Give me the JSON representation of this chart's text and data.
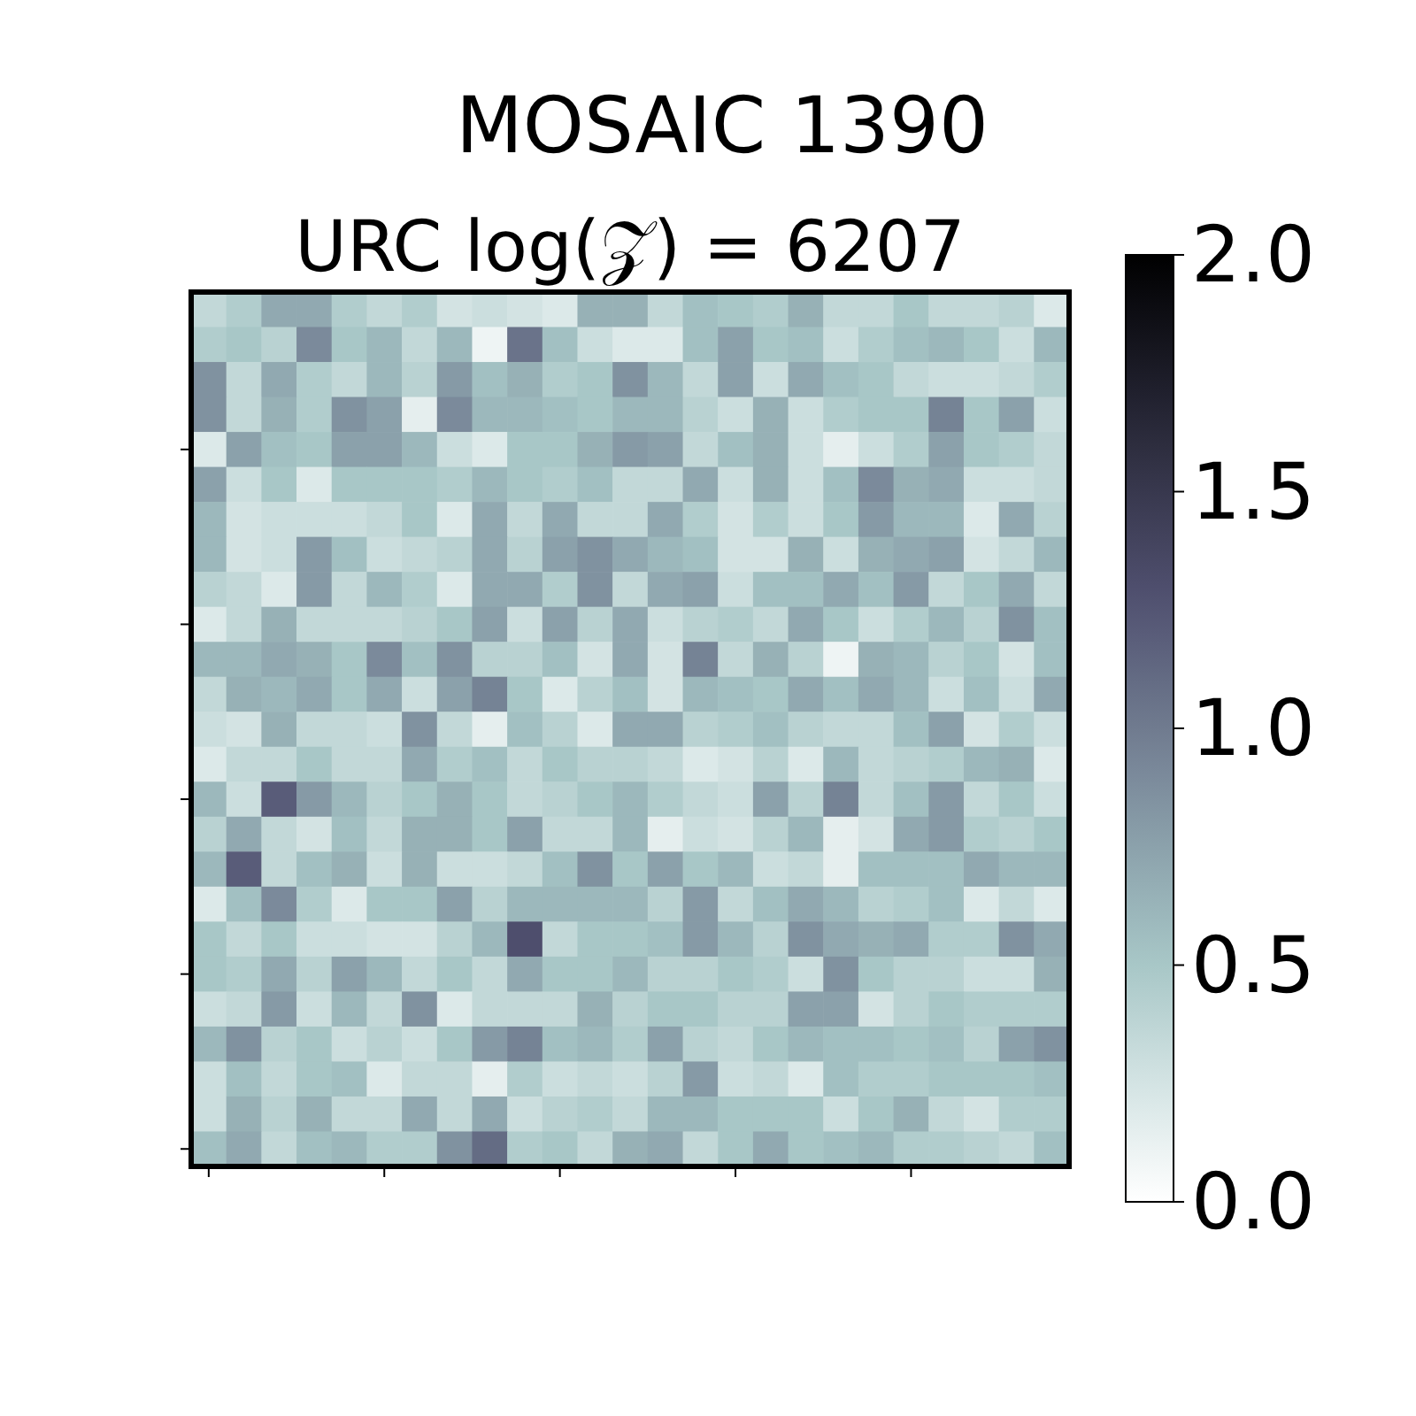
{
  "chart_data": {
    "type": "heatmap",
    "title": "MOSAIC 1390",
    "subtitle": "URC log(𝒵) = 6207",
    "categories": [
      null,
      null,
      null,
      null,
      null,
      null,
      null,
      null,
      null,
      null,
      null,
      null,
      null,
      null,
      null,
      null,
      null,
      null,
      null,
      null,
      null,
      null,
      null,
      null,
      null
    ],
    "y_categories": [
      null,
      null,
      null,
      null,
      null,
      null,
      null,
      null,
      null,
      null,
      null,
      null,
      null,
      null,
      null,
      null,
      null,
      null,
      null,
      null,
      null,
      null,
      null,
      null,
      null
    ],
    "clim": [
      0,
      2
    ],
    "cticks": [
      {
        "value": 0,
        "label": "0.0"
      },
      {
        "value": 0.5,
        "label": "0.5"
      },
      {
        "value": 1,
        "label": "1.0"
      },
      {
        "value": 1.5,
        "label": "1.5"
      },
      {
        "value": 2,
        "label": "2.0"
      }
    ],
    "cells": [
      [
        0.35,
        0.45,
        0.7,
        0.7,
        0.45,
        0.35,
        0.45,
        0.25,
        0.3,
        0.25,
        0.2,
        0.65,
        0.65,
        0.35,
        0.55,
        0.5,
        0.45,
        0.65,
        0.35,
        0.35,
        0.5,
        0.35,
        0.35,
        0.4,
        0.2
      ],
      [
        0.45,
        0.5,
        0.4,
        0.9,
        0.5,
        0.6,
        0.35,
        0.6,
        0.1,
        1.05,
        0.55,
        0.3,
        0.2,
        0.2,
        0.55,
        0.75,
        0.5,
        0.55,
        0.3,
        0.45,
        0.55,
        0.6,
        0.5,
        0.3,
        0.6
      ],
      [
        0.85,
        0.35,
        0.7,
        0.45,
        0.35,
        0.6,
        0.4,
        0.8,
        0.55,
        0.65,
        0.45,
        0.5,
        0.85,
        0.6,
        0.35,
        0.75,
        0.3,
        0.7,
        0.55,
        0.5,
        0.35,
        0.3,
        0.3,
        0.35,
        0.45
      ],
      [
        0.85,
        0.35,
        0.65,
        0.45,
        0.85,
        0.75,
        0.15,
        0.9,
        0.6,
        0.6,
        0.55,
        0.5,
        0.6,
        0.6,
        0.4,
        0.3,
        0.65,
        0.3,
        0.45,
        0.5,
        0.5,
        0.95,
        0.5,
        0.75,
        0.3
      ],
      [
        0.2,
        0.75,
        0.55,
        0.5,
        0.75,
        0.75,
        0.6,
        0.3,
        0.2,
        0.5,
        0.5,
        0.65,
        0.8,
        0.75,
        0.35,
        0.55,
        0.65,
        0.3,
        0.15,
        0.3,
        0.45,
        0.75,
        0.5,
        0.45,
        0.35
      ],
      [
        0.75,
        0.3,
        0.5,
        0.2,
        0.5,
        0.5,
        0.5,
        0.45,
        0.6,
        0.5,
        0.45,
        0.55,
        0.35,
        0.35,
        0.7,
        0.3,
        0.65,
        0.3,
        0.55,
        0.9,
        0.65,
        0.7,
        0.3,
        0.3,
        0.35
      ],
      [
        0.6,
        0.25,
        0.3,
        0.3,
        0.3,
        0.35,
        0.5,
        0.2,
        0.7,
        0.35,
        0.7,
        0.35,
        0.35,
        0.7,
        0.45,
        0.25,
        0.45,
        0.3,
        0.5,
        0.8,
        0.6,
        0.6,
        0.2,
        0.7,
        0.4
      ],
      [
        0.6,
        0.25,
        0.3,
        0.8,
        0.55,
        0.3,
        0.35,
        0.4,
        0.7,
        0.4,
        0.75,
        0.85,
        0.7,
        0.6,
        0.55,
        0.25,
        0.25,
        0.65,
        0.3,
        0.65,
        0.7,
        0.75,
        0.25,
        0.35,
        0.6
      ],
      [
        0.4,
        0.35,
        0.2,
        0.8,
        0.35,
        0.6,
        0.45,
        0.2,
        0.7,
        0.7,
        0.45,
        0.85,
        0.35,
        0.7,
        0.75,
        0.3,
        0.55,
        0.55,
        0.7,
        0.55,
        0.8,
        0.35,
        0.5,
        0.7,
        0.35
      ],
      [
        0.2,
        0.35,
        0.65,
        0.35,
        0.35,
        0.35,
        0.4,
        0.5,
        0.75,
        0.3,
        0.75,
        0.4,
        0.7,
        0.3,
        0.4,
        0.45,
        0.35,
        0.7,
        0.5,
        0.3,
        0.45,
        0.6,
        0.4,
        0.85,
        0.55
      ],
      [
        0.6,
        0.6,
        0.7,
        0.65,
        0.5,
        0.9,
        0.55,
        0.85,
        0.4,
        0.4,
        0.55,
        0.25,
        0.7,
        0.25,
        0.95,
        0.35,
        0.65,
        0.4,
        0.1,
        0.65,
        0.6,
        0.4,
        0.5,
        0.25,
        0.55
      ],
      [
        0.35,
        0.65,
        0.6,
        0.7,
        0.5,
        0.7,
        0.3,
        0.75,
        0.95,
        0.5,
        0.2,
        0.4,
        0.55,
        0.25,
        0.6,
        0.55,
        0.5,
        0.7,
        0.55,
        0.7,
        0.6,
        0.3,
        0.55,
        0.3,
        0.7
      ],
      [
        0.3,
        0.25,
        0.65,
        0.35,
        0.35,
        0.3,
        0.85,
        0.35,
        0.15,
        0.55,
        0.4,
        0.2,
        0.7,
        0.7,
        0.4,
        0.45,
        0.55,
        0.4,
        0.35,
        0.35,
        0.55,
        0.75,
        0.25,
        0.45,
        0.3
      ],
      [
        0.2,
        0.35,
        0.35,
        0.5,
        0.35,
        0.35,
        0.7,
        0.45,
        0.55,
        0.35,
        0.5,
        0.4,
        0.4,
        0.35,
        0.2,
        0.25,
        0.4,
        0.2,
        0.6,
        0.35,
        0.4,
        0.45,
        0.6,
        0.65,
        0.2
      ],
      [
        0.6,
        0.3,
        1.2,
        0.8,
        0.6,
        0.4,
        0.5,
        0.65,
        0.5,
        0.35,
        0.4,
        0.5,
        0.6,
        0.45,
        0.35,
        0.3,
        0.75,
        0.4,
        0.95,
        0.35,
        0.55,
        0.8,
        0.35,
        0.5,
        0.3
      ],
      [
        0.4,
        0.7,
        0.35,
        0.25,
        0.55,
        0.35,
        0.65,
        0.65,
        0.5,
        0.75,
        0.35,
        0.35,
        0.6,
        0.15,
        0.3,
        0.25,
        0.4,
        0.6,
        0.15,
        0.25,
        0.7,
        0.8,
        0.45,
        0.4,
        0.5
      ],
      [
        0.6,
        1.2,
        0.35,
        0.55,
        0.65,
        0.3,
        0.65,
        0.3,
        0.3,
        0.35,
        0.55,
        0.85,
        0.5,
        0.75,
        0.5,
        0.6,
        0.3,
        0.35,
        0.15,
        0.55,
        0.55,
        0.55,
        0.7,
        0.6,
        0.6
      ],
      [
        0.2,
        0.55,
        0.9,
        0.45,
        0.2,
        0.5,
        0.5,
        0.75,
        0.4,
        0.6,
        0.6,
        0.6,
        0.6,
        0.4,
        0.8,
        0.35,
        0.55,
        0.7,
        0.6,
        0.4,
        0.45,
        0.55,
        0.2,
        0.35,
        0.2
      ],
      [
        0.5,
        0.35,
        0.5,
        0.3,
        0.3,
        0.25,
        0.25,
        0.4,
        0.6,
        1.3,
        0.35,
        0.5,
        0.5,
        0.55,
        0.8,
        0.6,
        0.4,
        0.85,
        0.7,
        0.65,
        0.7,
        0.45,
        0.45,
        0.85,
        0.7
      ],
      [
        0.5,
        0.45,
        0.7,
        0.4,
        0.75,
        0.6,
        0.35,
        0.5,
        0.35,
        0.7,
        0.5,
        0.5,
        0.6,
        0.4,
        0.4,
        0.5,
        0.45,
        0.3,
        0.85,
        0.5,
        0.4,
        0.4,
        0.3,
        0.3,
        0.65
      ],
      [
        0.3,
        0.35,
        0.8,
        0.3,
        0.6,
        0.35,
        0.85,
        0.2,
        0.35,
        0.35,
        0.35,
        0.65,
        0.4,
        0.5,
        0.5,
        0.4,
        0.4,
        0.75,
        0.75,
        0.25,
        0.4,
        0.5,
        0.45,
        0.45,
        0.45
      ],
      [
        0.6,
        0.85,
        0.4,
        0.5,
        0.3,
        0.4,
        0.3,
        0.5,
        0.8,
        0.95,
        0.55,
        0.6,
        0.45,
        0.75,
        0.4,
        0.35,
        0.5,
        0.6,
        0.55,
        0.55,
        0.5,
        0.55,
        0.4,
        0.75,
        0.85
      ],
      [
        0.3,
        0.55,
        0.35,
        0.5,
        0.55,
        0.2,
        0.35,
        0.35,
        0.15,
        0.45,
        0.3,
        0.35,
        0.3,
        0.4,
        0.8,
        0.3,
        0.35,
        0.2,
        0.55,
        0.45,
        0.45,
        0.5,
        0.5,
        0.5,
        0.55
      ],
      [
        0.3,
        0.65,
        0.4,
        0.65,
        0.35,
        0.35,
        0.7,
        0.35,
        0.7,
        0.3,
        0.4,
        0.45,
        0.35,
        0.6,
        0.6,
        0.5,
        0.5,
        0.5,
        0.3,
        0.5,
        0.65,
        0.35,
        0.25,
        0.45,
        0.45
      ],
      [
        0.55,
        0.7,
        0.35,
        0.55,
        0.6,
        0.45,
        0.45,
        0.85,
        1.1,
        0.45,
        0.5,
        0.35,
        0.65,
        0.7,
        0.35,
        0.5,
        0.7,
        0.5,
        0.55,
        0.6,
        0.45,
        0.45,
        0.4,
        0.35,
        0.55
      ]
    ]
  }
}
